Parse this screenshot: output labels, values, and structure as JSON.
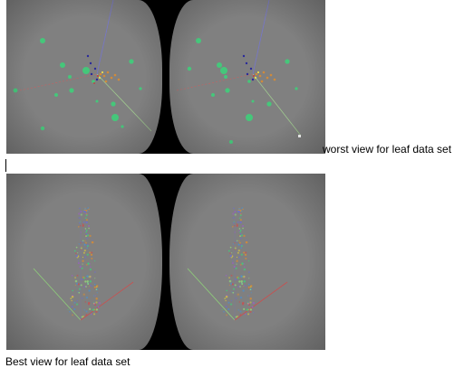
{
  "captions": {
    "worst": "worst view for leaf data set",
    "best": "Best view for leaf data set"
  },
  "colors": {
    "background": "#808080",
    "bezel": "#000000",
    "green_cluster": "#3fcf7a",
    "blue_axis": "#6e6ec8",
    "orange_axis": "#d08a3a",
    "green_axis": "#8fd07a",
    "red_axis": "#c85050"
  }
}
